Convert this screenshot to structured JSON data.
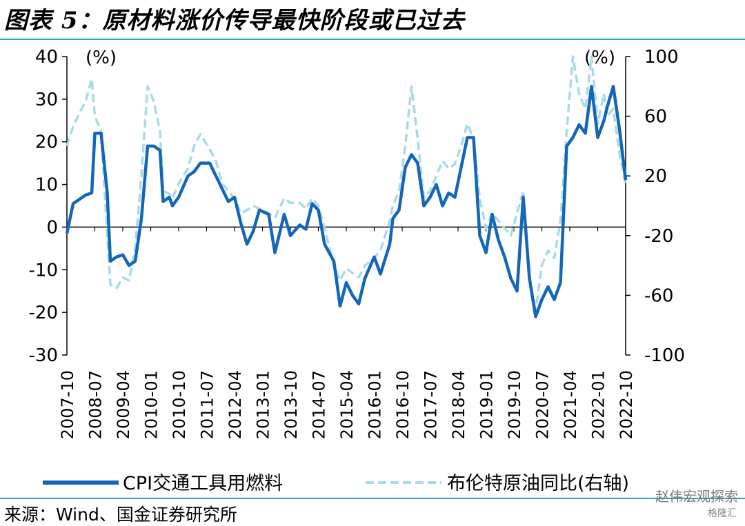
{
  "header": {
    "title": "图表 5：原材料涨价传导最快阶段或已过去"
  },
  "footer": {
    "source": "来源：Wind、国金证券研究所"
  },
  "watermark": {
    "text": "赵伟宏观探索",
    "sub": "格隆汇"
  },
  "colors": {
    "cpi_series": "#1466b8",
    "brent_series": "#a8daea",
    "accent_rule": "#2aa7b8"
  },
  "chart_data": {
    "type": "line",
    "left_axis": {
      "unit": "(%)",
      "ylim": [
        -30,
        40
      ],
      "ticks": [
        "40",
        "30",
        "20",
        "10",
        "0",
        "-10",
        "-20",
        "-30"
      ]
    },
    "right_axis": {
      "unit": "(%)",
      "ylim": [
        -100,
        100
      ],
      "ticks": [
        "100",
        "60",
        "20",
        "-20",
        "-60",
        "-100"
      ]
    },
    "x_tick_labels": [
      "2007-10",
      "2008-07",
      "2009-04",
      "2010-01",
      "2010-10",
      "2011-07",
      "2012-04",
      "2013-01",
      "2013-10",
      "2014-07",
      "2015-04",
      "2016-01",
      "2016-10",
      "2017-07",
      "2018-04",
      "2019-01",
      "2019-10",
      "2020-07",
      "2021-04",
      "2022-01",
      "2022-10"
    ],
    "legend": {
      "position": "bottom",
      "entries": [
        "CPI交通工具用燃料",
        "布伦特原油同比(右轴)"
      ]
    },
    "series": [
      {
        "name": "CPI交通工具用燃料",
        "axis": "left",
        "points": [
          [
            "2007-10",
            -1.5
          ],
          [
            "2007-12",
            5.5
          ],
          [
            "2008-02",
            6.5
          ],
          [
            "2008-04",
            7.5
          ],
          [
            "2008-06",
            8
          ],
          [
            "2008-07",
            22
          ],
          [
            "2008-09",
            22
          ],
          [
            "2008-11",
            8
          ],
          [
            "2008-12",
            -8
          ],
          [
            "2009-02",
            -7
          ],
          [
            "2009-04",
            -6.5
          ],
          [
            "2009-06",
            -9
          ],
          [
            "2009-08",
            -8
          ],
          [
            "2009-10",
            2
          ],
          [
            "2009-12",
            19
          ],
          [
            "2010-02",
            19
          ],
          [
            "2010-04",
            18
          ],
          [
            "2010-05",
            6
          ],
          [
            "2010-07",
            7
          ],
          [
            "2010-08",
            5
          ],
          [
            "2010-10",
            7
          ],
          [
            "2011-01",
            12
          ],
          [
            "2011-03",
            13
          ],
          [
            "2011-05",
            15
          ],
          [
            "2011-08",
            15
          ],
          [
            "2011-10",
            12
          ],
          [
            "2011-12",
            9
          ],
          [
            "2012-02",
            6
          ],
          [
            "2012-04",
            7
          ],
          [
            "2012-06",
            1
          ],
          [
            "2012-08",
            -4
          ],
          [
            "2012-10",
            -1
          ],
          [
            "2012-12",
            4
          ],
          [
            "2013-03",
            3
          ],
          [
            "2013-05",
            -6
          ],
          [
            "2013-08",
            3
          ],
          [
            "2013-10",
            -2
          ],
          [
            "2014-01",
            0.5
          ],
          [
            "2014-03",
            -0.5
          ],
          [
            "2014-05",
            5.5
          ],
          [
            "2014-07",
            4
          ],
          [
            "2014-09",
            -4
          ],
          [
            "2014-12",
            -8
          ],
          [
            "2015-02",
            -18.5
          ],
          [
            "2015-04",
            -13
          ],
          [
            "2015-06",
            -16
          ],
          [
            "2015-08",
            -18
          ],
          [
            "2015-10",
            -12
          ],
          [
            "2016-01",
            -7
          ],
          [
            "2016-03",
            -11
          ],
          [
            "2016-06",
            -4
          ],
          [
            "2016-07",
            2
          ],
          [
            "2016-09",
            4
          ],
          [
            "2016-11",
            14
          ],
          [
            "2017-01",
            17
          ],
          [
            "2017-03",
            15
          ],
          [
            "2017-05",
            5
          ],
          [
            "2017-07",
            7
          ],
          [
            "2017-09",
            10
          ],
          [
            "2017-11",
            5
          ],
          [
            "2018-01",
            8
          ],
          [
            "2018-03",
            7
          ],
          [
            "2018-05",
            14
          ],
          [
            "2018-07",
            21
          ],
          [
            "2018-09",
            21
          ],
          [
            "2018-11",
            -2
          ],
          [
            "2019-01",
            -6
          ],
          [
            "2019-03",
            3
          ],
          [
            "2019-05",
            -3
          ],
          [
            "2019-07",
            -7
          ],
          [
            "2019-09",
            -12
          ],
          [
            "2019-11",
            -15
          ],
          [
            "2020-01",
            7
          ],
          [
            "2020-03",
            -12
          ],
          [
            "2020-05",
            -21
          ],
          [
            "2020-07",
            -17
          ],
          [
            "2020-09",
            -14
          ],
          [
            "2020-11",
            -17
          ],
          [
            "2021-01",
            -13
          ],
          [
            "2021-03",
            19
          ],
          [
            "2021-05",
            21
          ],
          [
            "2021-07",
            24
          ],
          [
            "2021-09",
            22
          ],
          [
            "2021-11",
            33
          ],
          [
            "2022-01",
            21
          ],
          [
            "2022-03",
            25
          ],
          [
            "2022-04",
            28
          ],
          [
            "2022-06",
            33
          ],
          [
            "2022-08",
            23
          ],
          [
            "2022-10",
            11
          ]
        ]
      },
      {
        "name": "布伦特原油同比(右轴)",
        "axis": "right",
        "points": [
          [
            "2007-10",
            40
          ],
          [
            "2007-12",
            53
          ],
          [
            "2008-02",
            62
          ],
          [
            "2008-04",
            70
          ],
          [
            "2008-06",
            85
          ],
          [
            "2008-07",
            60
          ],
          [
            "2008-09",
            50
          ],
          [
            "2008-11",
            -20
          ],
          [
            "2008-12",
            -53
          ],
          [
            "2009-02",
            -55
          ],
          [
            "2009-04",
            -48
          ],
          [
            "2009-06",
            -50
          ],
          [
            "2009-08",
            -28
          ],
          [
            "2009-10",
            20
          ],
          [
            "2009-12",
            80
          ],
          [
            "2010-02",
            70
          ],
          [
            "2010-04",
            50
          ],
          [
            "2010-05",
            10
          ],
          [
            "2010-07",
            8
          ],
          [
            "2010-08",
            5
          ],
          [
            "2010-10",
            15
          ],
          [
            "2011-01",
            25
          ],
          [
            "2011-03",
            40
          ],
          [
            "2011-05",
            48
          ],
          [
            "2011-08",
            38
          ],
          [
            "2011-10",
            30
          ],
          [
            "2011-12",
            15
          ],
          [
            "2012-02",
            10
          ],
          [
            "2012-04",
            5
          ],
          [
            "2012-06",
            -5
          ],
          [
            "2012-08",
            -3
          ],
          [
            "2012-10",
            0
          ],
          [
            "2012-12",
            -2
          ],
          [
            "2013-03",
            -5
          ],
          [
            "2013-05",
            -8
          ],
          [
            "2013-08",
            5
          ],
          [
            "2013-10",
            2
          ],
          [
            "2014-01",
            2
          ],
          [
            "2014-03",
            -2
          ],
          [
            "2014-05",
            5
          ],
          [
            "2014-07",
            0
          ],
          [
            "2014-09",
            -15
          ],
          [
            "2014-12",
            -40
          ],
          [
            "2015-02",
            -50
          ],
          [
            "2015-04",
            -42
          ],
          [
            "2015-06",
            -45
          ],
          [
            "2015-08",
            -48
          ],
          [
            "2015-10",
            -40
          ],
          [
            "2016-01",
            -35
          ],
          [
            "2016-03",
            -30
          ],
          [
            "2016-06",
            -10
          ],
          [
            "2016-07",
            0
          ],
          [
            "2016-09",
            10
          ],
          [
            "2016-11",
            40
          ],
          [
            "2017-01",
            80
          ],
          [
            "2017-03",
            45
          ],
          [
            "2017-05",
            5
          ],
          [
            "2017-07",
            10
          ],
          [
            "2017-09",
            20
          ],
          [
            "2017-11",
            30
          ],
          [
            "2018-01",
            25
          ],
          [
            "2018-03",
            28
          ],
          [
            "2018-05",
            40
          ],
          [
            "2018-07",
            55
          ],
          [
            "2018-09",
            45
          ],
          [
            "2018-11",
            5
          ],
          [
            "2019-01",
            -15
          ],
          [
            "2019-03",
            -5
          ],
          [
            "2019-05",
            -10
          ],
          [
            "2019-07",
            -15
          ],
          [
            "2019-09",
            -20
          ],
          [
            "2019-11",
            -5
          ],
          [
            "2020-01",
            10
          ],
          [
            "2020-03",
            -50
          ],
          [
            "2020-05",
            -70
          ],
          [
            "2020-07",
            -40
          ],
          [
            "2020-09",
            -30
          ],
          [
            "2020-11",
            -35
          ],
          [
            "2021-01",
            -10
          ],
          [
            "2021-03",
            50
          ],
          [
            "2021-05",
            100
          ],
          [
            "2021-07",
            75
          ],
          [
            "2021-09",
            65
          ],
          [
            "2021-11",
            100
          ],
          [
            "2022-01",
            55
          ],
          [
            "2022-03",
            75
          ],
          [
            "2022-04",
            60
          ],
          [
            "2022-06",
            65
          ],
          [
            "2022-08",
            35
          ],
          [
            "2022-10",
            15
          ]
        ]
      }
    ]
  }
}
